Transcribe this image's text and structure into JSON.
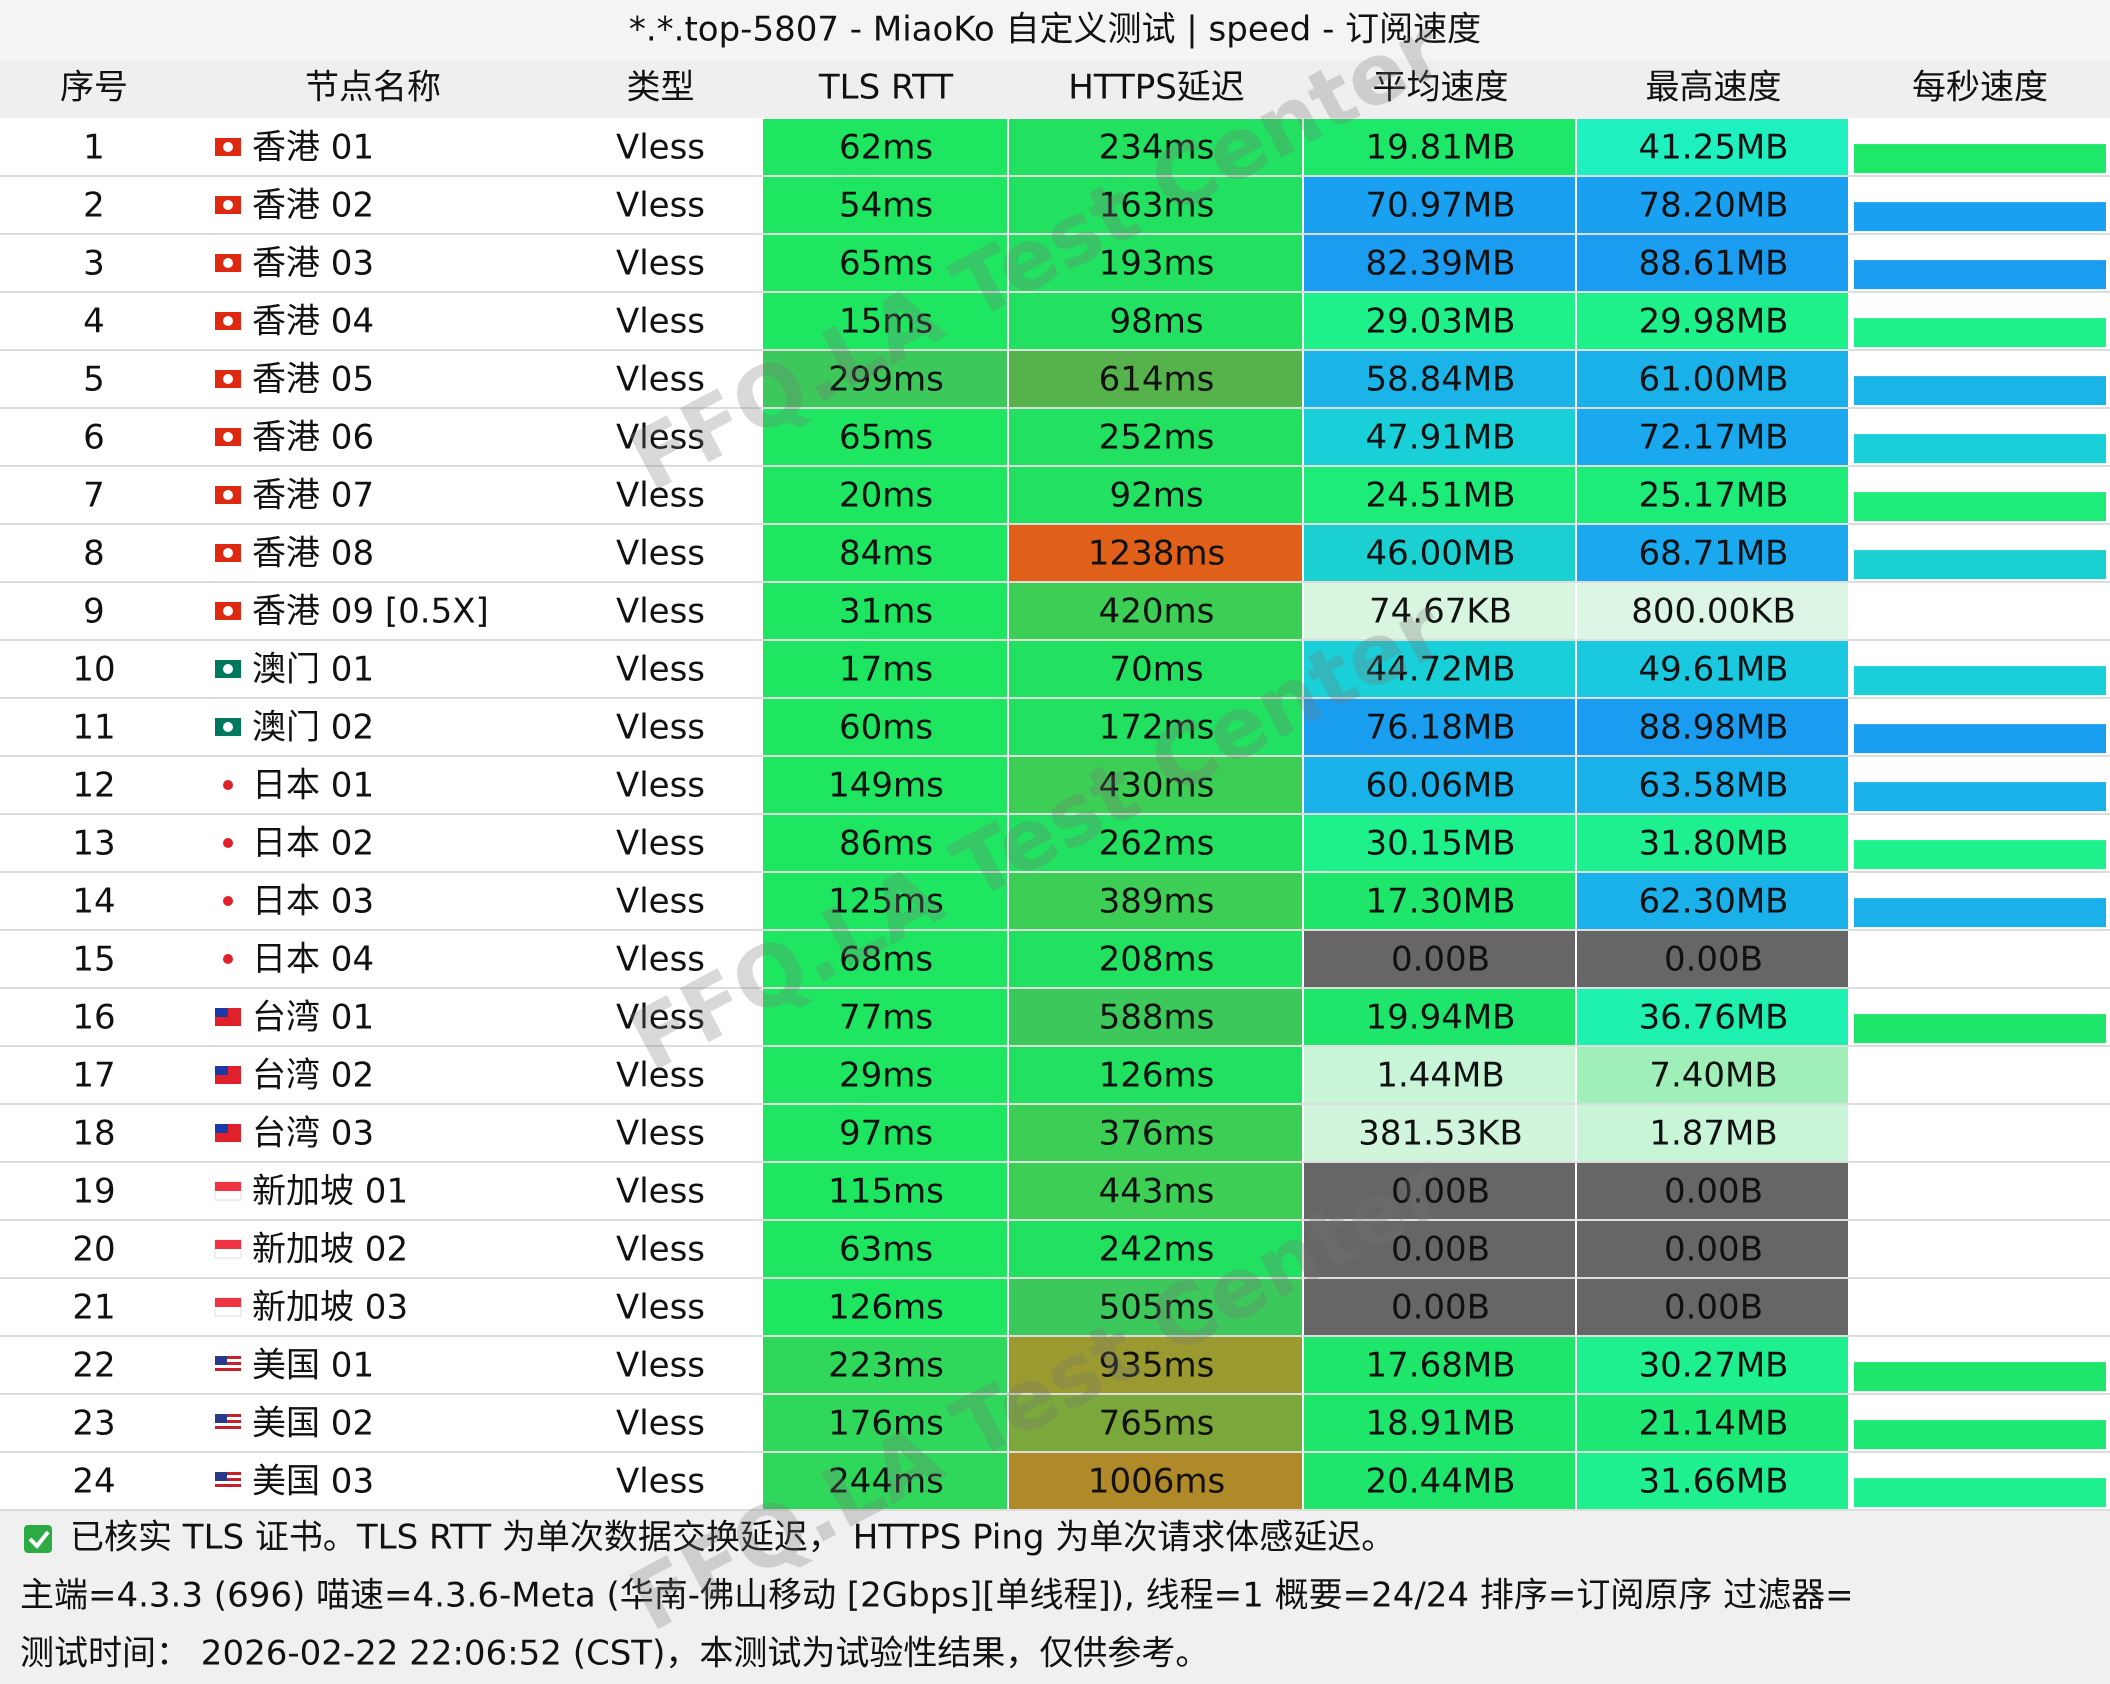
{
  "header": {
    "title": "*.*.top-5807 - MiaoKo 自定义测试 | speed - 订阅速度"
  },
  "watermark": "FFQ.LA Test Center",
  "table": {
    "columns": [
      "序号",
      "节点名称",
      "类型",
      "TLS RTT",
      "HTTPS延迟",
      "平均速度",
      "最高速度",
      "每秒速度"
    ],
    "rows": [
      [
        "1",
        "香港 01",
        "Vless",
        "62ms",
        "234ms",
        "19.81MB",
        "41.25MB"
      ],
      [
        "2",
        "香港 02",
        "Vless",
        "54ms",
        "163ms",
        "70.97MB",
        "78.20MB"
      ],
      [
        "3",
        "香港 03",
        "Vless",
        "65ms",
        "193ms",
        "82.39MB",
        "88.61MB"
      ],
      [
        "4",
        "香港 04",
        "Vless",
        "15ms",
        "98ms",
        "29.03MB",
        "29.98MB"
      ],
      [
        "5",
        "香港 05",
        "Vless",
        "299ms",
        "614ms",
        "58.84MB",
        "61.00MB"
      ],
      [
        "6",
        "香港 06",
        "Vless",
        "65ms",
        "252ms",
        "47.91MB",
        "72.17MB"
      ],
      [
        "7",
        "香港 07",
        "Vless",
        "20ms",
        "92ms",
        "24.51MB",
        "25.17MB"
      ],
      [
        "8",
        "香港 08",
        "Vless",
        "84ms",
        "1238ms",
        "46.00MB",
        "68.71MB"
      ],
      [
        "9",
        "香港 09 [0.5X]",
        "Vless",
        "31ms",
        "420ms",
        "74.67KB",
        "800.00KB"
      ],
      [
        "10",
        "澳门 01",
        "Vless",
        "17ms",
        "70ms",
        "44.72MB",
        "49.61MB"
      ],
      [
        "11",
        "澳门 02",
        "Vless",
        "60ms",
        "172ms",
        "76.18MB",
        "88.98MB"
      ],
      [
        "12",
        "日本 01",
        "Vless",
        "149ms",
        "430ms",
        "60.06MB",
        "63.58MB"
      ],
      [
        "13",
        "日本 02",
        "Vless",
        "86ms",
        "262ms",
        "30.15MB",
        "31.80MB"
      ],
      [
        "14",
        "日本 03",
        "Vless",
        "125ms",
        "389ms",
        "17.30MB",
        "62.30MB"
      ],
      [
        "15",
        "日本 04",
        "Vless",
        "68ms",
        "208ms",
        "0.00B",
        "0.00B"
      ],
      [
        "16",
        "台湾 01",
        "Vless",
        "77ms",
        "588ms",
        "19.94MB",
        "36.76MB"
      ],
      [
        "17",
        "台湾 02",
        "Vless",
        "29ms",
        "126ms",
        "1.44MB",
        "7.40MB"
      ],
      [
        "18",
        "台湾 03",
        "Vless",
        "97ms",
        "376ms",
        "381.53KB",
        "1.87MB"
      ],
      [
        "19",
        "新加坡 01",
        "Vless",
        "115ms",
        "443ms",
        "0.00B",
        "0.00B"
      ],
      [
        "20",
        "新加坡 02",
        "Vless",
        "63ms",
        "242ms",
        "0.00B",
        "0.00B"
      ],
      [
        "21",
        "新加坡 03",
        "Vless",
        "126ms",
        "505ms",
        "0.00B",
        "0.00B"
      ],
      [
        "22",
        "美国 01",
        "Vless",
        "223ms",
        "935ms",
        "17.68MB",
        "30.27MB"
      ],
      [
        "23",
        "美国 02",
        "Vless",
        "176ms",
        "765ms",
        "18.91MB",
        "21.14MB"
      ],
      [
        "24",
        "美国 03",
        "Vless",
        "244ms",
        "1006ms",
        "20.44MB",
        "31.66MB"
      ]
    ],
    "cell_colors": [
      [
        "#1ee660",
        "#22e060",
        "#1ee86a",
        "#1ef0c0",
        "#1ee86a"
      ],
      [
        "#1ee660",
        "#22e060",
        "#1aa0f0",
        "#1aa0f0",
        "#1aa0f0"
      ],
      [
        "#1ee660",
        "#22e060",
        "#1a9cf0",
        "#1a9cf0",
        "#1a9cf0"
      ],
      [
        "#1ee660",
        "#22e060",
        "#1ef08a",
        "#1ef08a",
        "#1ef08a"
      ],
      [
        "#3cc85a",
        "#56b24a",
        "#1ab4e8",
        "#1ab0ea",
        "#1ab4e8"
      ],
      [
        "#1ee660",
        "#22e060",
        "#1ad0d8",
        "#1aa8ee",
        "#1ad0d8"
      ],
      [
        "#1ee660",
        "#22e060",
        "#1eec78",
        "#1eec78",
        "#1eec78"
      ],
      [
        "#1ee660",
        "#e0601a",
        "#1ad0d0",
        "#1aa8ee",
        "#1ad0d0"
      ],
      [
        "#1ee660",
        "#3dce55",
        "#d8f5e0",
        "#dcf5e4",
        null
      ],
      [
        "#1ee660",
        "#22e060",
        "#1ad0d8",
        "#1ac8e0",
        "#1ad0d8"
      ],
      [
        "#1ee660",
        "#22e060",
        "#1a9ef0",
        "#1a9cf0",
        "#1a9ef0"
      ],
      [
        "#1ee660",
        "#3dce55",
        "#1ab0ea",
        "#1ab0ea",
        "#1ab0ea"
      ],
      [
        "#1ee660",
        "#22e060",
        "#1ef08c",
        "#1ef090",
        "#1ef08c"
      ],
      [
        "#1ee660",
        "#3dce55",
        "#1ee66a",
        "#1ab0ea",
        "#1ab0ea"
      ],
      [
        "#1ee660",
        "#22e060",
        "#666666",
        "#666666",
        null
      ],
      [
        "#1ee660",
        "#3cc85a",
        "#1ee66a",
        "#1ef0b0",
        "#1ee66a"
      ],
      [
        "#1ee660",
        "#22e060",
        "#c8f5d8",
        "#a0eeb8",
        null
      ],
      [
        "#1ee660",
        "#3dce55",
        "#d0f5dc",
        "#c8f5d8",
        null
      ],
      [
        "#1ee660",
        "#3dce55",
        "#666666",
        "#666666",
        null
      ],
      [
        "#1ee660",
        "#22e060",
        "#666666",
        "#666666",
        null
      ],
      [
        "#1ee660",
        "#3cc85a",
        "#666666",
        "#666666",
        null
      ],
      [
        "#2fd85a",
        "#9a9a30",
        "#1ee66a",
        "#1ef090",
        "#1ee66a"
      ],
      [
        "#2fd85a",
        "#7aa83a",
        "#1ee66a",
        "#1ee874",
        "#1ee874"
      ],
      [
        "#2fd85a",
        "#b08a28",
        "#1ee66a",
        "#1ef090",
        "#1ef090"
      ]
    ]
  },
  "footer": {
    "lines": [
      "已核实 TLS 证书。TLS RTT 为单次数据交换延迟， HTTPS Ping 为单次请求体感延迟。",
      "主端=4.3.3 (696) 喵速=4.3.6-Meta (华南-佛山移动 [2Gbps][单线程]), 线程=1 概要=24/24 排序=订阅原序 过滤器=",
      "测试时间： 2026-02-22 22:06:52 (CST)，本测试为试验性结果，仅供参考。"
    ]
  }
}
